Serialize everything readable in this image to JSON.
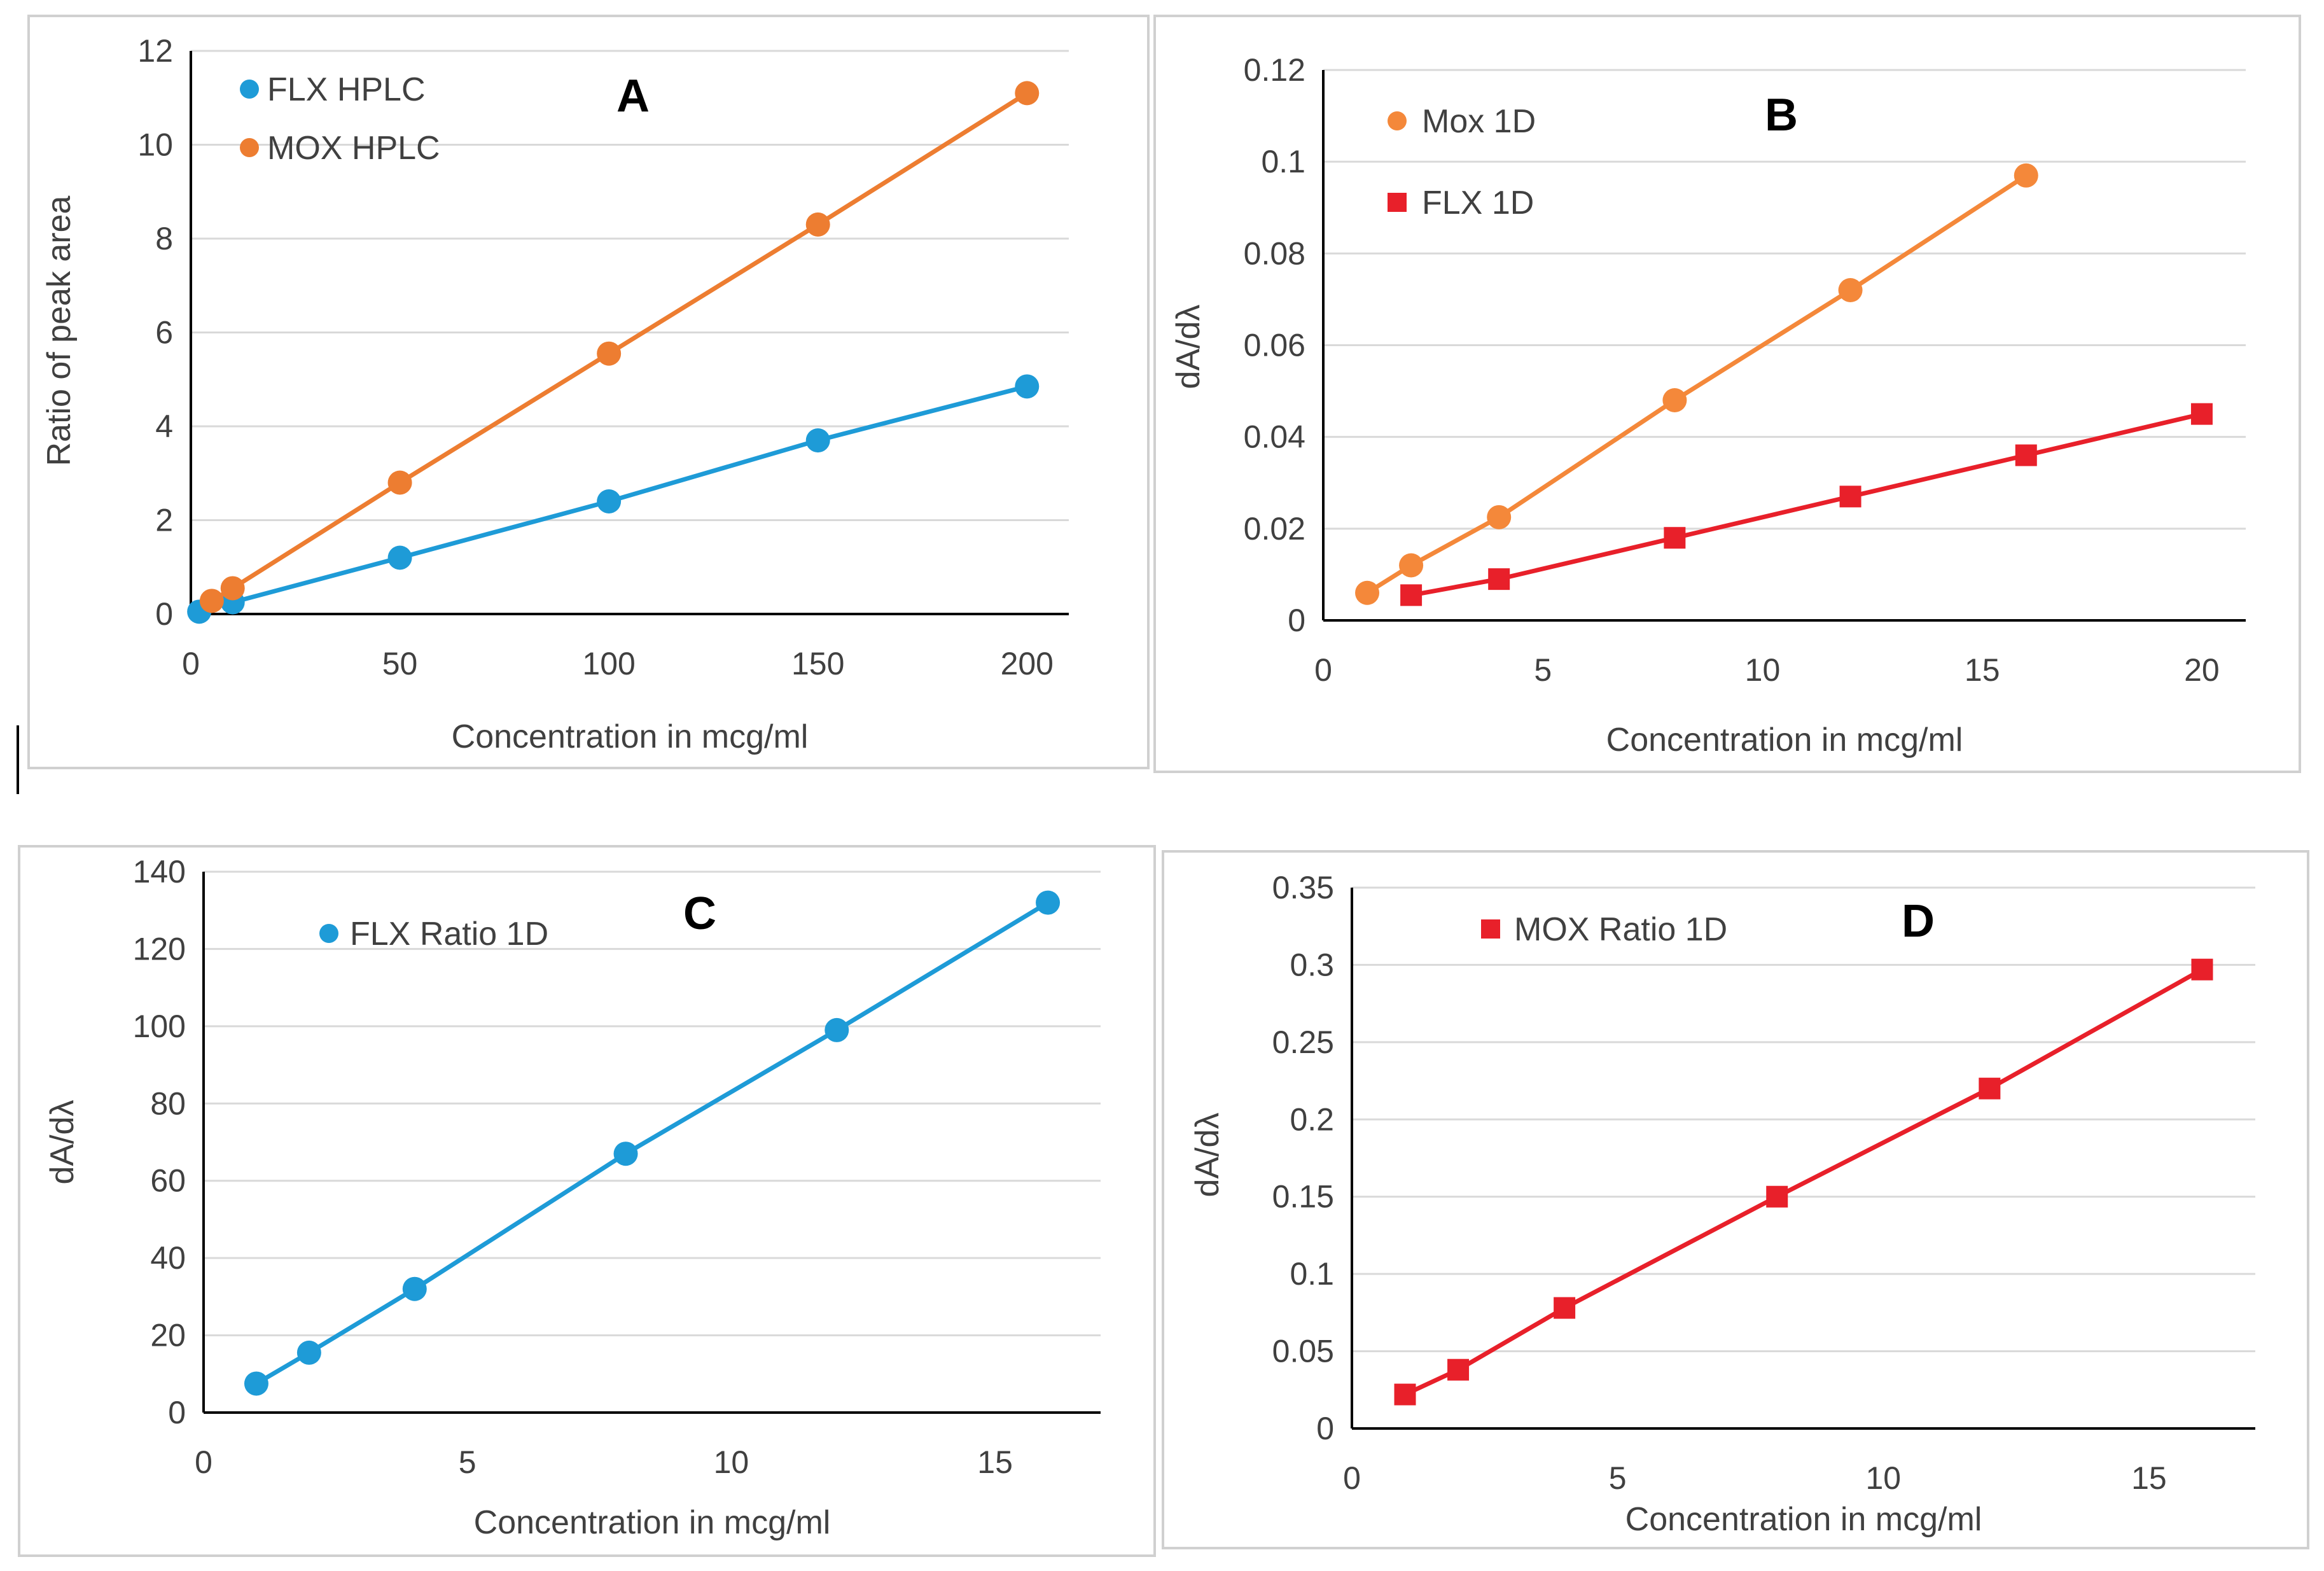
{
  "chart_data": [
    {
      "id": "A",
      "type": "line",
      "panel_label": "A",
      "xlabel": "Concentration in mcg/ml",
      "ylabel": "Ratio of peak area",
      "xlim": [
        0,
        210
      ],
      "ylim": [
        0,
        12
      ],
      "x_ticks": [
        0,
        50,
        100,
        150,
        200
      ],
      "y_ticks": [
        0,
        2,
        4,
        6,
        8,
        10,
        12
      ],
      "x_tick_labels": [
        "0",
        "50",
        "100",
        "150",
        "200"
      ],
      "y_tick_labels": [
        "0",
        "2",
        "4",
        "6",
        "8",
        "10",
        "12"
      ],
      "grid": true,
      "legend_position": "top-left",
      "series": [
        {
          "name": "FLX HPLC",
          "color": "#1e9bd7",
          "marker": "circle",
          "x": [
            2,
            10,
            50,
            100,
            150,
            200
          ],
          "y": [
            0.05,
            0.25,
            1.2,
            2.4,
            3.7,
            4.85
          ]
        },
        {
          "name": "MOX HPLC",
          "color": "#ed7d31",
          "marker": "circle",
          "x": [
            5,
            10,
            50,
            100,
            150,
            200
          ],
          "y": [
            0.28,
            0.55,
            2.8,
            5.55,
            8.3,
            11.1
          ]
        }
      ]
    },
    {
      "id": "B",
      "type": "line",
      "panel_label": "B",
      "xlabel": "Concentration in mcg/ml",
      "ylabel": "dA/dλ",
      "xlim": [
        0,
        21
      ],
      "ylim": [
        0,
        0.12
      ],
      "x_ticks": [
        0,
        5,
        10,
        15,
        20
      ],
      "y_ticks": [
        0,
        0.02,
        0.04,
        0.06,
        0.08,
        0.1,
        0.12
      ],
      "x_tick_labels": [
        "0",
        "5",
        "10",
        "15",
        "20"
      ],
      "y_tick_labels": [
        "0",
        "0.02",
        "0.04",
        "0.06",
        "0.08",
        "0.1",
        "0.12"
      ],
      "grid": true,
      "legend_position": "top-left",
      "series": [
        {
          "name": "Mox 1D",
          "color": "#f4883a",
          "marker": "circle",
          "x": [
            1,
            2,
            4,
            8,
            12,
            16
          ],
          "y": [
            0.006,
            0.012,
            0.0225,
            0.048,
            0.072,
            0.097
          ]
        },
        {
          "name": "FLX 1D",
          "color": "#e8202a",
          "marker": "square",
          "x": [
            2,
            4,
            8,
            12,
            16,
            20
          ],
          "y": [
            0.0055,
            0.009,
            0.018,
            0.027,
            0.036,
            0.045
          ]
        }
      ]
    },
    {
      "id": "C",
      "type": "line",
      "panel_label": "C",
      "xlabel": "Concentration in mcg/ml",
      "ylabel": "dA/dλ",
      "xlim": [
        0,
        17
      ],
      "ylim": [
        0,
        140
      ],
      "x_ticks": [
        0,
        5,
        10,
        15
      ],
      "y_ticks": [
        0,
        20,
        40,
        60,
        80,
        100,
        120,
        140
      ],
      "x_tick_labels": [
        "0",
        "5",
        "10",
        "15"
      ],
      "y_tick_labels": [
        "0",
        "20",
        "40",
        "60",
        "80",
        "100",
        "120",
        "140"
      ],
      "grid": true,
      "legend_position": "top-left",
      "series": [
        {
          "name": "FLX Ratio 1D",
          "color": "#1e9bd7",
          "marker": "circle",
          "x": [
            1,
            2,
            4,
            8,
            12,
            16
          ],
          "y": [
            7.5,
            15.5,
            32,
            67,
            99,
            132
          ]
        }
      ]
    },
    {
      "id": "D",
      "type": "line",
      "panel_label": "D",
      "xlabel": "Concentration in mcg/ml",
      "ylabel": "dA/dλ",
      "xlim": [
        0,
        17
      ],
      "ylim": [
        0,
        0.35
      ],
      "x_ticks": [
        0,
        5,
        10,
        15
      ],
      "y_ticks": [
        0,
        0.05,
        0.1,
        0.15,
        0.2,
        0.25,
        0.3,
        0.35
      ],
      "x_tick_labels": [
        "0",
        "5",
        "10",
        "15"
      ],
      "y_tick_labels": [
        "0",
        "0.05",
        "0.1",
        "0.15",
        "0.2",
        "0.25",
        "0.3",
        "0.35"
      ],
      "grid": true,
      "legend_position": "top-left",
      "series": [
        {
          "name": "MOX Ratio 1D",
          "color": "#e8202a",
          "marker": "square",
          "x": [
            1,
            2,
            4,
            8,
            12,
            16
          ],
          "y": [
            0.022,
            0.038,
            0.078,
            0.15,
            0.22,
            0.297
          ]
        }
      ]
    }
  ]
}
